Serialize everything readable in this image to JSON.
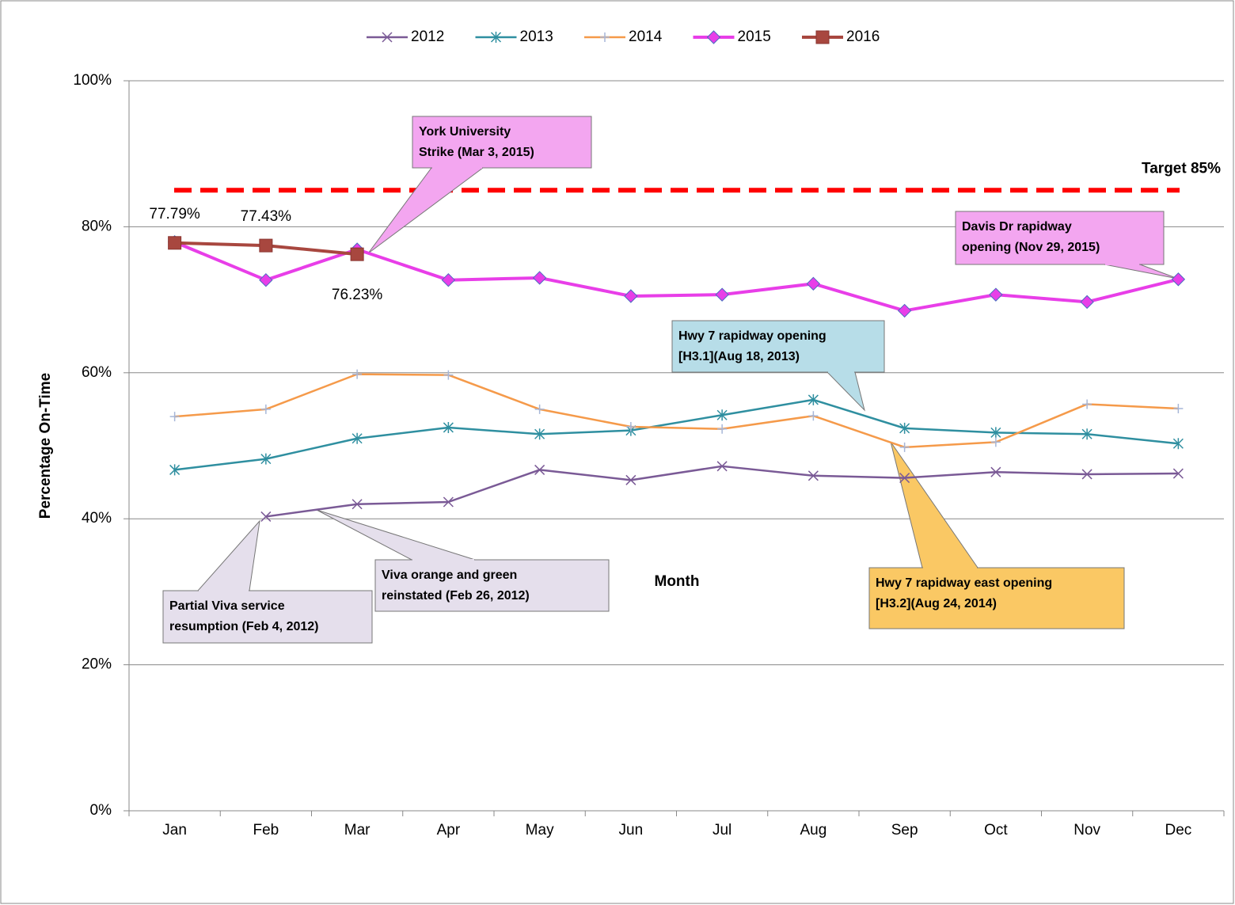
{
  "chart_data": {
    "type": "line",
    "x_label": "Month",
    "y_label": "Percentage On-Time",
    "categories": [
      "Jan",
      "Feb",
      "Mar",
      "Apr",
      "May",
      "Jun",
      "Jul",
      "Aug",
      "Sep",
      "Oct",
      "Nov",
      "Dec"
    ],
    "series": [
      {
        "name": "2012",
        "color": "#7a5a96",
        "marker": "x",
        "values": [
          null,
          40.3,
          42.0,
          42.3,
          46.7,
          45.3,
          47.2,
          45.9,
          45.6,
          46.4,
          46.1,
          46.2
        ]
      },
      {
        "name": "2013",
        "color": "#2f8fa0",
        "marker": "asterisk",
        "values": [
          46.7,
          48.2,
          51.0,
          52.5,
          51.6,
          52.1,
          54.2,
          56.3,
          52.4,
          51.8,
          51.6,
          50.3
        ]
      },
      {
        "name": "2014",
        "color": "#f59a4a",
        "marker": "plus",
        "values": [
          54.0,
          55.0,
          59.8,
          59.7,
          55.0,
          52.6,
          52.3,
          54.1,
          49.8,
          50.5,
          55.7,
          55.1
        ]
      },
      {
        "name": "2015",
        "color": "#e83ee8",
        "marker": "diamond",
        "values": [
          77.9,
          72.7,
          76.9,
          72.7,
          73.0,
          70.5,
          70.7,
          72.2,
          68.5,
          70.7,
          69.7,
          72.8
        ]
      },
      {
        "name": "2016",
        "color": "#a8473f",
        "marker": "square",
        "values": [
          77.79,
          77.43,
          76.23,
          null,
          null,
          null,
          null,
          null,
          null,
          null,
          null,
          null
        ],
        "value_labels": [
          "77.79%",
          "77.43%",
          "76.23%",
          null,
          null,
          null,
          null,
          null,
          null,
          null,
          null,
          null
        ]
      }
    ],
    "ylim": [
      0,
      100
    ],
    "yticks": [
      {
        "value": 0,
        "label": "0%"
      },
      {
        "value": 20,
        "label": "20%"
      },
      {
        "value": 40,
        "label": "40%"
      },
      {
        "value": 60,
        "label": "60%"
      },
      {
        "value": 80,
        "label": "80%"
      },
      {
        "value": 100,
        "label": "100%"
      }
    ],
    "grid": true,
    "legend": "top",
    "target": {
      "value": 85,
      "label": "Target 85%",
      "color": "#ff0000"
    },
    "annotations": [
      {
        "lines": [
          "York University",
          "Strike (Mar 3, 2015)"
        ],
        "color": "#f3a6f0"
      },
      {
        "lines": [
          "Davis Dr rapidway",
          "opening (Nov 29, 2015)"
        ],
        "color": "#f3a6f0"
      },
      {
        "lines": [
          "Hwy 7 rapidway opening",
          "[H3.1](Aug 18, 2013)"
        ],
        "color": "#b7dde8"
      },
      {
        "lines": [
          "Hwy 7 rapidway east opening",
          "[H3.2](Aug 24, 2014)"
        ],
        "color": "#fac864"
      },
      {
        "lines": [
          "Partial Viva service",
          "resumption (Feb 4, 2012)"
        ],
        "color": "#e5dfec"
      },
      {
        "lines": [
          "Viva orange and green",
          "reinstated (Feb 26, 2012)"
        ],
        "color": "#e5dfec"
      }
    ]
  }
}
